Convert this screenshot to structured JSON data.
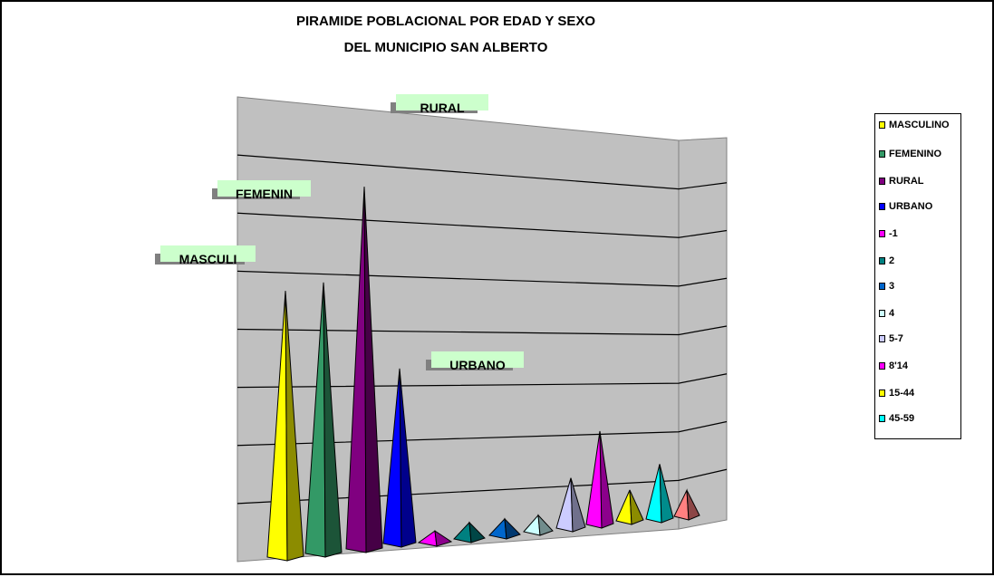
{
  "chart_data": {
    "type": "bar",
    "bar_shape": "pyramid-3d",
    "title_lines": [
      "PIRAMIDE POBLACIONAL POR EDAD Y SEXO",
      "DEL  MUNICIPIO SAN ALBERTO"
    ],
    "categories": [
      "MASCULINO",
      "FEMENINO",
      "RURAL",
      "URBANO",
      "-1",
      "2",
      "3",
      "4",
      "5-7",
      "8'14",
      "15-44",
      "45-59",
      ""
    ],
    "values": [
      56,
      57,
      76,
      37,
      3,
      4,
      4,
      4,
      11,
      20,
      7,
      12,
      6
    ],
    "colors": [
      "#ffff00",
      "#339966",
      "#800080",
      "#0000ff",
      "#ff00ff",
      "#008080",
      "#0066cc",
      "#ccffff",
      "#ccccff",
      "#ff00ff",
      "#ffff00",
      "#00ffff",
      "#ff8080"
    ],
    "ylim": [
      0,
      80
    ],
    "grid": true,
    "legend_position": "right",
    "annotations": [
      "RURAL",
      "FEMENIN",
      "MASCULI",
      "URBANO"
    ]
  },
  "legend": [
    {
      "label": "MASCULINO",
      "color": "#ffff00"
    },
    {
      "label": "FEMENINO",
      "color": "#339966"
    },
    {
      "label": "RURAL",
      "color": "#800080"
    },
    {
      "label": "URBANO",
      "color": "#0000ff"
    },
    {
      "label": "-1",
      "color": "#ff00ff"
    },
    {
      "label": "2",
      "color": "#008080"
    },
    {
      "label": "3",
      "color": "#0066cc"
    },
    {
      "label": "4",
      "color": "#ccffff"
    },
    {
      "label": "5-7",
      "color": "#ccccff"
    },
    {
      "label": "8'14",
      "color": "#ff00ff"
    },
    {
      "label": "15-44",
      "color": "#ffff00"
    },
    {
      "label": "45-59",
      "color": "#00ffff"
    }
  ]
}
